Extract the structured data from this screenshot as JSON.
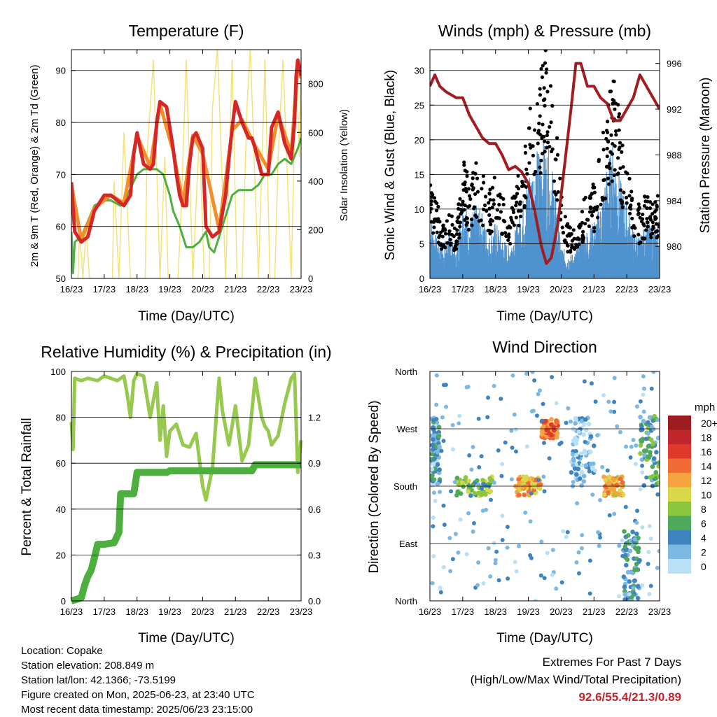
{
  "x_ticks": [
    "16/23",
    "17/23",
    "18/23",
    "19/23",
    "20/23",
    "21/23",
    "22/23",
    "23/23"
  ],
  "x_axis_label": "Time (Day/UTC)",
  "temperature_panel": {
    "title": "Temperature (F)",
    "ylabel_left": "2m & 9m T (Red, Orange) & 2m Td (Green)",
    "ylabel_right": "Solar Insolation (Yellow)",
    "yticks_left": [
      "50",
      "60",
      "70",
      "80",
      "90"
    ],
    "yticks_right": [
      "0",
      "200",
      "400",
      "600",
      "800"
    ]
  },
  "wind_panel": {
    "title": "Winds (mph) & Pressure (mb)",
    "ylabel_left": "Sonic Wind & Gust (Blue, Black)",
    "ylabel_right": "Station Pressure (Maroon)",
    "yticks_left": [
      "0",
      "5",
      "10",
      "15",
      "20",
      "25",
      "30"
    ],
    "yticks_right": [
      "980",
      "984",
      "988",
      "992",
      "996"
    ]
  },
  "humidity_panel": {
    "title": "Relative Humidity (%) & Precipitation (in)",
    "ylabel_left": "Percent & Total Rainfall",
    "yticks_left": [
      "0",
      "20",
      "40",
      "60",
      "80",
      "100"
    ],
    "yticks_right": [
      "0.0",
      "0.3",
      "0.6",
      "0.9",
      "1.2"
    ]
  },
  "direction_panel": {
    "title": "Wind Direction",
    "ylabel_left": "Direction (Colored By Speed)",
    "yticks_left": [
      "North",
      "East",
      "South",
      "West",
      "North"
    ],
    "legend_title": "mph",
    "legend_labels": [
      "20+",
      "18",
      "16",
      "14",
      "12",
      "10",
      "8",
      "6",
      "4",
      "2",
      "0"
    ],
    "legend_colors": [
      "#9b1b1e",
      "#c0272d",
      "#e0392b",
      "#f26a36",
      "#f7a33f",
      "#d8d84a",
      "#8cc63e",
      "#4fa95a",
      "#3f83bf",
      "#7db8e3",
      "#b9e0f5"
    ]
  },
  "info": {
    "location": "Location: Copake",
    "elevation": "Station elevation: 208.849 m",
    "latlon": "Station lat/lon: 42.1366; -73.5199",
    "created": "Figure created on Mon, 2025-06-23, at 23:40 UTC",
    "recent": "Most recent data timestamp: 2025/06/23 23:15:00"
  },
  "extremes": {
    "title": "Extremes For Past 7 Days",
    "subtitle": "(High/Low/Max Wind/Total Precipitation)",
    "values": "92.6/55.4/21.3/0.89"
  },
  "colors": {
    "temp_2m": "#d62728",
    "temp_9m": "#f28e2b",
    "dewpoint": "#4caf3e",
    "solar": "#f5e27a",
    "wind": "#4f93cf",
    "gust": "#000000",
    "pressure": "#a11d21",
    "rh": "#96c94e",
    "precip": "#4caf3e"
  },
  "chart_data": [
    {
      "type": "line",
      "title": "Temperature (F)",
      "xlabel": "Time (Day/UTC)",
      "ylabel": "2m & 9m T (Red, Orange) & 2m Td (Green)",
      "y2label": "Solar Insolation (Yellow)",
      "xlim": [
        16,
        23
      ],
      "ylim": [
        50,
        94
      ],
      "y2lim": [
        0,
        940
      ],
      "series": [
        {
          "name": "2m T",
          "axis": "left",
          "color": "#d62728",
          "x": [
            16,
            16.1,
            16.3,
            16.5,
            16.7,
            17,
            17.2,
            17.4,
            17.6,
            17.8,
            17.9,
            18,
            18.2,
            18.4,
            18.5,
            18.6,
            18.7,
            18.9,
            19.1,
            19.2,
            19.3,
            19.4,
            19.5,
            19.6,
            19.7,
            19.8,
            20,
            20.1,
            20.3,
            20.5,
            20.7,
            20.8,
            20.9,
            21,
            21.2,
            21.4,
            21.5,
            21.6,
            21.8,
            22,
            22.1,
            22.3,
            22.5,
            22.7,
            22.8,
            22.85,
            22.9,
            23
          ],
          "y": [
            68.5,
            59,
            57,
            58,
            63,
            66,
            66,
            65,
            64,
            66,
            74,
            78,
            72,
            71,
            72,
            80,
            84,
            83,
            75,
            70,
            66,
            64,
            64,
            72,
            77,
            78,
            75,
            60,
            58,
            59,
            66,
            73,
            79,
            84,
            80,
            77,
            77,
            75,
            70,
            70,
            79,
            82,
            76,
            73,
            80,
            89,
            92,
            89
          ]
        },
        {
          "name": "9m T",
          "axis": "left",
          "color": "#f28e2b",
          "x": [
            16,
            16.3,
            16.7,
            17.2,
            17.6,
            18,
            18.4,
            18.7,
            19.1,
            19.4,
            19.7,
            20,
            20.5,
            20.9,
            21.2,
            21.6,
            22,
            22.3,
            22.7,
            22.9,
            23
          ],
          "y": [
            68,
            57.5,
            63.5,
            66,
            64.5,
            77.5,
            71.5,
            83.5,
            74.5,
            64.5,
            77.5,
            74,
            59.5,
            78.5,
            80.5,
            75.5,
            71,
            81.5,
            74,
            91,
            88.5
          ]
        },
        {
          "name": "2m Td",
          "axis": "left",
          "color": "#4caf3e",
          "x": [
            16,
            16.05,
            16.1,
            16.3,
            16.5,
            16.7,
            17,
            17.2,
            17.5,
            17.7,
            18,
            18.2,
            18.4,
            18.6,
            18.8,
            19,
            19.1,
            19.3,
            19.5,
            19.7,
            19.9,
            20.1,
            20.2,
            20.35,
            20.5,
            20.7,
            20.9,
            21.1,
            21.3,
            21.5,
            21.7,
            21.9,
            22.1,
            22.3,
            22.5,
            22.7,
            22.9,
            23
          ],
          "y": [
            59,
            51,
            57,
            58,
            61,
            64,
            65,
            65,
            64,
            66,
            70,
            71,
            71,
            71,
            70,
            66,
            63,
            60,
            56,
            56,
            57,
            59,
            56,
            55,
            58,
            62,
            66,
            67,
            67,
            67,
            68,
            70,
            70,
            72,
            73,
            72,
            75,
            77
          ]
        },
        {
          "name": "Solar Insolation",
          "axis": "right",
          "color": "#f5e27a",
          "x": [
            16,
            16.2,
            16.25,
            16.35,
            16.45,
            16.55,
            16.75,
            16.95,
            17.05,
            17.25,
            17.3,
            17.45,
            17.6,
            17.8,
            17.95,
            18.05,
            18.25,
            18.3,
            18.5,
            18.7,
            18.85,
            18.95,
            19.1,
            19.25,
            19.35,
            19.5,
            19.7,
            19.9,
            20.05,
            20.2,
            20.3,
            20.45,
            20.7,
            20.9,
            21.05,
            21.2,
            21.35,
            21.45,
            21.7,
            21.9,
            22.05,
            22.2,
            22.3,
            22.45,
            22.7,
            22.85,
            22.95,
            23
          ],
          "y": [
            0,
            0,
            200,
            0,
            200,
            0,
            0,
            0,
            0,
            0,
            400,
            0,
            600,
            0,
            0,
            0,
            0,
            500,
            900,
            0,
            500,
            0,
            0,
            0,
            300,
            900,
            0,
            600,
            0,
            0,
            700,
            950,
            0,
            900,
            0,
            0,
            700,
            950,
            0,
            900,
            0,
            0,
            500,
            900,
            0,
            900,
            500,
            900
          ]
        }
      ]
    },
    {
      "type": "line",
      "title": "Winds (mph) & Pressure (mb)",
      "xlabel": "Time (Day/UTC)",
      "ylabel": "Sonic Wind & Gust (Blue, Black)",
      "y2label": "Station Pressure (Maroon)",
      "xlim": [
        16,
        23
      ],
      "ylim": [
        0,
        33
      ],
      "y2lim": [
        977.2,
        997.2
      ],
      "series": [
        {
          "name": "Sonic Wind",
          "axis": "left",
          "color": "#4f93cf",
          "style": "bars",
          "x": [
            16,
            16.2,
            16.4,
            16.6,
            16.8,
            17,
            17.2,
            17.4,
            17.6,
            17.8,
            18,
            18.2,
            18.4,
            18.6,
            18.8,
            19,
            19.2,
            19.4,
            19.6,
            19.8,
            20,
            20.2,
            20.4,
            20.6,
            20.8,
            21,
            21.2,
            21.4,
            21.6,
            21.8,
            22,
            22.2,
            22.4,
            22.6,
            22.8,
            23
          ],
          "y": [
            8,
            5,
            4,
            6,
            3,
            11,
            7,
            9,
            8,
            5,
            7,
            5,
            4,
            6,
            9,
            13,
            15,
            17,
            16,
            12,
            4,
            3,
            3,
            5,
            6,
            7,
            9,
            14,
            17,
            12,
            9,
            6,
            5,
            7,
            6,
            7
          ]
        },
        {
          "name": "Gust",
          "axis": "left",
          "color": "#000000",
          "style": "dots",
          "x": [
            16,
            16.2,
            16.4,
            16.6,
            16.8,
            17,
            17.2,
            17.4,
            17.6,
            17.8,
            18,
            18.2,
            18.4,
            18.6,
            18.8,
            19,
            19.2,
            19.4,
            19.6,
            19.8,
            20,
            20.2,
            20.4,
            20.6,
            20.8,
            21,
            21.2,
            21.4,
            21.6,
            21.8,
            22,
            22.2,
            22.4,
            22.6,
            22.8,
            23
          ],
          "y": [
            13,
            10,
            7,
            9,
            6,
            16,
            12,
            15,
            14,
            11,
            14,
            11,
            8,
            12,
            15,
            21,
            23,
            28,
            30,
            22,
            12,
            7,
            6,
            9,
            11,
            12,
            16,
            22,
            26,
            20,
            15,
            11,
            9,
            11,
            10,
            11
          ]
        },
        {
          "name": "Station Pressure",
          "axis": "right",
          "color": "#a11d21",
          "style": "line",
          "x": [
            16,
            16.15,
            16.3,
            16.5,
            16.8,
            17,
            17.2,
            17.4,
            17.6,
            17.8,
            18,
            18.2,
            18.4,
            18.6,
            18.8,
            19,
            19.2,
            19.4,
            19.55,
            19.7,
            19.9,
            20.1,
            20.3,
            20.45,
            20.6,
            20.8,
            21,
            21.2,
            21.4,
            21.6,
            21.8,
            22,
            22.2,
            22.4,
            22.6,
            22.8,
            23
          ],
          "y": [
            994,
            995,
            994,
            993.5,
            993,
            993,
            991.5,
            990.5,
            989.5,
            989,
            989,
            988,
            986.7,
            987,
            986.5,
            985.5,
            983,
            980,
            978.5,
            979,
            982,
            987,
            992,
            996,
            996,
            994,
            994,
            993,
            992.5,
            991,
            991,
            992,
            993,
            995,
            994,
            993,
            992
          ]
        }
      ]
    },
    {
      "type": "line",
      "title": "Relative Humidity (%) & Precipitation (in)",
      "xlabel": "Time (Day/UTC)",
      "ylabel": "Percent & Total Rainfall",
      "xlim": [
        16,
        23
      ],
      "ylim": [
        0,
        100
      ],
      "y2lim": [
        0,
        1.5
      ],
      "series": [
        {
          "name": "Relative Humidity",
          "axis": "left",
          "color": "#96c94e",
          "x": [
            16,
            16.05,
            16.1,
            16.3,
            16.5,
            16.8,
            17,
            17.2,
            17.4,
            17.6,
            17.7,
            17.8,
            17.9,
            18,
            18.2,
            18.4,
            18.6,
            18.7,
            18.8,
            18.9,
            19,
            19.2,
            19.4,
            19.6,
            19.8,
            20,
            20.1,
            20.3,
            20.5,
            20.6,
            20.8,
            21,
            21.2,
            21.4,
            21.6,
            21.8,
            21.9,
            22,
            22.1,
            22.3,
            22.5,
            22.7,
            22.8,
            22.9,
            23
          ],
          "y": [
            78,
            66,
            97,
            96,
            97,
            96,
            98,
            97,
            96,
            98,
            90,
            80,
            96,
            99,
            98,
            80,
            95,
            70,
            85,
            63,
            74,
            77,
            68,
            67,
            73,
            50,
            44,
            58,
            97,
            83,
            68,
            85,
            61,
            68,
            97,
            80,
            76,
            74,
            68,
            72,
            86,
            97,
            99,
            56,
            70
          ]
        },
        {
          "name": "Total Precipitation",
          "axis": "right",
          "color": "#4caf3e",
          "x": [
            16,
            16.3,
            16.4,
            16.5,
            16.6,
            16.7,
            16.8,
            17,
            17.3,
            17.45,
            17.5,
            17.6,
            17.9,
            18,
            18.1,
            18.9,
            19,
            20.5,
            21.5,
            21.6,
            22.9,
            23
          ],
          "y": [
            0,
            0.02,
            0.1,
            0.16,
            0.2,
            0.28,
            0.37,
            0.37,
            0.38,
            0.45,
            0.7,
            0.7,
            0.7,
            0.84,
            0.84,
            0.84,
            0.85,
            0.85,
            0.85,
            0.89,
            0.89,
            0.89
          ]
        }
      ]
    },
    {
      "type": "scatter",
      "title": "Wind Direction",
      "xlabel": "Time (Day/UTC)",
      "ylabel": "Direction (Colored By Speed)",
      "xlim": [
        16,
        23
      ],
      "yticks": [
        "North",
        "East",
        "South",
        "West",
        "North"
      ],
      "colorbar": {
        "title": "mph",
        "labels": [
          "20+",
          "18",
          "16",
          "14",
          "12",
          "10",
          "8",
          "6",
          "4",
          "2",
          "0"
        ]
      },
      "clusters": [
        {
          "x": [
            16.05,
            16.3
          ],
          "direction": [
            "South",
            "West"
          ],
          "speed": 3
        },
        {
          "x": [
            16.8,
            17.9
          ],
          "direction": [
            "South",
            "South"
          ],
          "speed": 7
        },
        {
          "x": [
            18.6,
            19.4
          ],
          "direction": [
            "South",
            "South"
          ],
          "speed": 12
        },
        {
          "x": [
            19.4,
            19.9
          ],
          "direction": [
            "West",
            "West"
          ],
          "speed": 14
        },
        {
          "x": [
            20.3,
            21.0
          ],
          "direction": [
            "South",
            "North"
          ],
          "speed": 2
        },
        {
          "x": [
            21.3,
            21.9
          ],
          "direction": [
            "South",
            "South"
          ],
          "speed": 11
        },
        {
          "x": [
            21.9,
            22.4
          ],
          "direction": [
            "North",
            "East"
          ],
          "speed": 4
        },
        {
          "x": [
            22.4,
            23
          ],
          "direction": [
            "South",
            "West"
          ],
          "speed": 5
        }
      ]
    }
  ]
}
